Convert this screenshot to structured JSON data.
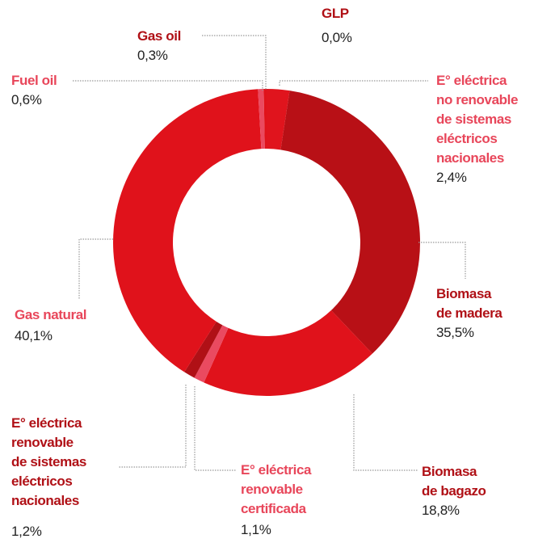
{
  "chart_data": {
    "type": "donut",
    "categories": [
      "GLP",
      "E° eléctrica\nno renovable\nde sistemas\neléctricos\nnacionales",
      "Biomasa\nde madera",
      "Biomasa\nde bagazo",
      "E° eléctrica\nrenovable\ncertificada",
      "E° eléctrica\nrenovable\nde sistemas\neléctricos\nnacionales",
      "Gas natural",
      "Fuel oil",
      "Gas oil"
    ],
    "values": [
      0.0,
      2.4,
      35.5,
      18.8,
      1.1,
      1.2,
      40.1,
      0.6,
      0.3
    ],
    "value_labels": [
      "0,0%",
      "2,4%",
      "35,5%",
      "18,8%",
      "1,1%",
      "1,2%",
      "40,1%",
      "0,6%",
      "0,3%"
    ],
    "colors": [
      "#e0121b",
      "#e0141d",
      "#b81016",
      "#e0121b",
      "#ea4a60",
      "#b01016",
      "#e0121b",
      "#ea4a60",
      "#e0121b"
    ],
    "label_colors": [
      "#b01016",
      "#e8465a",
      "#b01016",
      "#b01016",
      "#e8465a",
      "#b01016",
      "#e8465a",
      "#e8465a",
      "#b01016"
    ]
  }
}
